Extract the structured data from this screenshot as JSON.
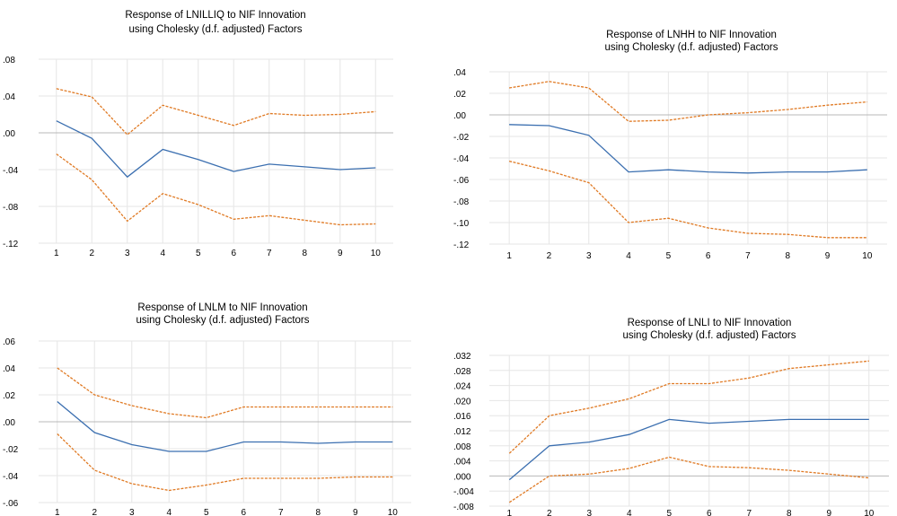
{
  "colors": {
    "response": "#3b6fb0",
    "band": "#e07a24",
    "grid": "#e6e6e6",
    "zero_line": "#b8b8b8"
  },
  "chart_data": [
    {
      "type": "line",
      "title": "Response of LNILLIQ to NIF Innovation",
      "subtitle": "using Cholesky (d.f. adjusted) Factors",
      "x": [
        1,
        2,
        3,
        4,
        5,
        6,
        7,
        8,
        9,
        10
      ],
      "ylim": [
        -0.12,
        0.08
      ],
      "yticks": [
        0.08,
        0.04,
        0.0,
        -0.04,
        -0.08,
        -0.12
      ],
      "ytick_labels": [
        ".08",
        ".04",
        ".00",
        "-.04",
        "-.08",
        "-.12"
      ],
      "grid": true,
      "series": [
        {
          "values": [
            0.013,
            -0.006,
            -0.048,
            -0.018,
            -0.029,
            -0.042,
            -0.034,
            -0.037,
            -0.04,
            -0.038
          ]
        },
        {
          "values": [
            0.048,
            0.039,
            -0.002,
            0.03,
            0.019,
            0.008,
            0.021,
            0.019,
            0.02,
            0.023
          ]
        },
        {
          "values": [
            -0.023,
            -0.051,
            -0.096,
            -0.066,
            -0.078,
            -0.094,
            -0.09,
            -0.095,
            -0.1,
            -0.099
          ]
        }
      ]
    },
    {
      "type": "line",
      "title": "Response of LNHH to NIF Innovation",
      "subtitle": "using Cholesky (d.f. adjusted) Factors",
      "x": [
        1,
        2,
        3,
        4,
        5,
        6,
        7,
        8,
        9,
        10
      ],
      "ylim": [
        -0.12,
        0.04
      ],
      "yticks": [
        0.04,
        0.02,
        0.0,
        -0.02,
        -0.04,
        -0.06,
        -0.08,
        -0.1,
        -0.12
      ],
      "ytick_labels": [
        ".04",
        ".02",
        ".00",
        "-.02",
        "-.04",
        "-.06",
        "-.08",
        "-.10",
        "-.12"
      ],
      "grid": true,
      "series": [
        {
          "values": [
            -0.009,
            -0.01,
            -0.019,
            -0.053,
            -0.051,
            -0.053,
            -0.054,
            -0.053,
            -0.053,
            -0.051
          ]
        },
        {
          "values": [
            0.025,
            0.031,
            0.025,
            -0.006,
            -0.005,
            0.0,
            0.002,
            0.005,
            0.009,
            0.012
          ]
        },
        {
          "values": [
            -0.043,
            -0.052,
            -0.063,
            -0.1,
            -0.096,
            -0.105,
            -0.11,
            -0.111,
            -0.114,
            -0.114
          ]
        }
      ]
    },
    {
      "type": "line",
      "title": "Response of LNLM to NIF Innovation",
      "subtitle": "using Cholesky (d.f. adjusted) Factors",
      "x": [
        1,
        2,
        3,
        4,
        5,
        6,
        7,
        8,
        9,
        10
      ],
      "ylim": [
        -0.06,
        0.06
      ],
      "yticks": [
        0.06,
        0.04,
        0.02,
        0.0,
        -0.02,
        -0.04,
        -0.06
      ],
      "ytick_labels": [
        ".06",
        ".04",
        ".02",
        ".00",
        "-.02",
        "-.04",
        "-.06"
      ],
      "grid": true,
      "series": [
        {
          "values": [
            0.015,
            -0.008,
            -0.017,
            -0.022,
            -0.022,
            -0.015,
            -0.015,
            -0.016,
            -0.015,
            -0.015
          ]
        },
        {
          "values": [
            0.04,
            0.02,
            0.012,
            0.006,
            0.003,
            0.011,
            0.011,
            0.011,
            0.011,
            0.011
          ]
        },
        {
          "values": [
            -0.009,
            -0.036,
            -0.046,
            -0.051,
            -0.047,
            -0.042,
            -0.042,
            -0.042,
            -0.041,
            -0.041
          ]
        }
      ]
    },
    {
      "type": "line",
      "title": "Response of LNLI to NIF Innovation",
      "subtitle": "using Cholesky (d.f. adjusted) Factors",
      "x": [
        1,
        2,
        3,
        4,
        5,
        6,
        7,
        8,
        9,
        10
      ],
      "ylim": [
        -0.008,
        0.032
      ],
      "yticks": [
        0.032,
        0.028,
        0.024,
        0.02,
        0.016,
        0.012,
        0.008,
        0.004,
        0.0,
        -0.004,
        -0.008
      ],
      "ytick_labels": [
        ".032",
        ".028",
        ".024",
        ".020",
        ".016",
        ".012",
        ".008",
        ".004",
        ".000",
        "-.004",
        "-.008"
      ],
      "grid": true,
      "series": [
        {
          "values": [
            -0.001,
            0.008,
            0.009,
            0.011,
            0.015,
            0.014,
            0.0145,
            0.015,
            0.015,
            0.015
          ]
        },
        {
          "values": [
            0.006,
            0.016,
            0.018,
            0.0205,
            0.0245,
            0.0245,
            0.026,
            0.0285,
            0.0295,
            0.0305
          ]
        },
        {
          "values": [
            -0.007,
            0.0,
            0.0005,
            0.002,
            0.005,
            0.0025,
            0.0022,
            0.0015,
            0.0005,
            -0.0005
          ]
        }
      ]
    }
  ]
}
